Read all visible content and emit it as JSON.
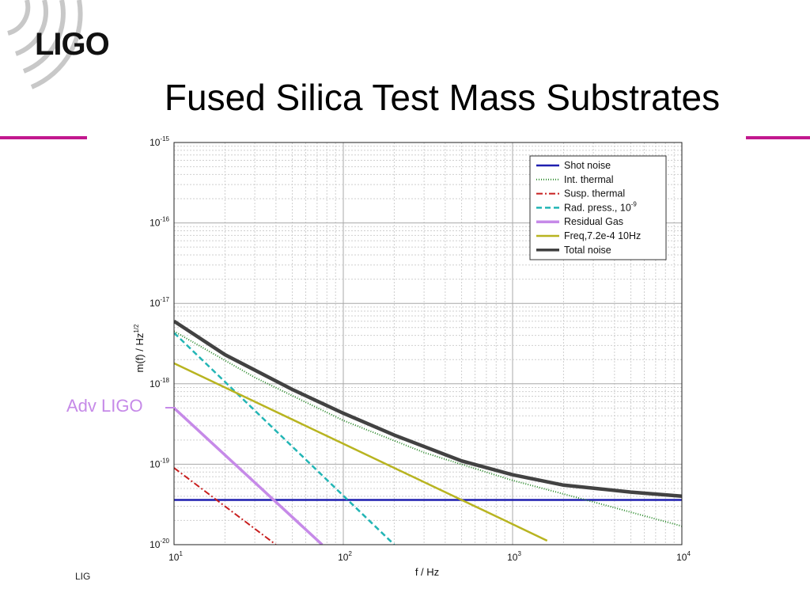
{
  "slide": {
    "logo_text": "LIGO",
    "title": "Fused Silica Test Mass Substrates",
    "footer": "LIG",
    "annotation": "Adv LIGO",
    "accent_color": "#c2188e",
    "annotation_color": "#c68ae8"
  },
  "chart_data": {
    "type": "line",
    "x_scale": "log",
    "y_scale": "log",
    "xlim": [
      10,
      10000
    ],
    "ylim": [
      1e-20,
      1e-15
    ],
    "xlabel": "f / Hz",
    "ylabel": "m(f) / Hz^1/2",
    "ylabel_base": "m(f) / Hz",
    "ylabel_exp": "1/2",
    "grid": true,
    "legend_position": "top-right",
    "x_ticks": [
      {
        "base": "10",
        "exp": "1",
        "value": 10
      },
      {
        "base": "10",
        "exp": "2",
        "value": 100
      },
      {
        "base": "10",
        "exp": "3",
        "value": 1000
      },
      {
        "base": "10",
        "exp": "4",
        "value": 10000
      }
    ],
    "y_ticks": [
      {
        "base": "10",
        "exp": "-15",
        "value": 1e-15
      },
      {
        "base": "10",
        "exp": "-16",
        "value": 1e-16
      },
      {
        "base": "10",
        "exp": "-17",
        "value": 1e-17
      },
      {
        "base": "10",
        "exp": "-18",
        "value": 1e-18
      },
      {
        "base": "10",
        "exp": "-19",
        "value": 1e-19
      },
      {
        "base": "10",
        "exp": "-20",
        "value": 1e-20
      }
    ],
    "series": [
      {
        "name": "Shot noise",
        "legend_sup": "",
        "color": "#1f1fb0",
        "dash": "",
        "width": 2.5,
        "x": [
          10,
          10000
        ],
        "y": [
          3.6e-20,
          3.6e-20
        ]
      },
      {
        "name": "Int. thermal",
        "legend_sup": "",
        "color": "#2a8a2a",
        "dash": "1,2",
        "width": 2,
        "x": [
          10,
          30,
          100,
          300,
          1000,
          3000,
          10000
        ],
        "y": [
          4.5e-18,
          1.2e-18,
          3.5e-19,
          1.4e-19,
          6.3e-20,
          3.4e-20,
          1.7e-20
        ]
      },
      {
        "name": "Susp. thermal",
        "legend_sup": "",
        "color": "#c81e1e",
        "dash": "8,3,2,3",
        "width": 2,
        "x": [
          10,
          40
        ],
        "y": [
          9e-20,
          1e-20
        ]
      },
      {
        "name": "Rad. press., 10",
        "legend_sup": "-9",
        "color": "#22b5b5",
        "dash": "7,4",
        "width": 2.5,
        "x": [
          10,
          200
        ],
        "y": [
          4.3e-18,
          1e-20
        ]
      },
      {
        "name": "Residual Gas",
        "legend_sup": "",
        "color": "#c68ae8",
        "dash": "",
        "width": 3.5,
        "x": [
          10,
          75
        ],
        "y": [
          5e-19,
          1e-20
        ]
      },
      {
        "name": "Freq,7.2e-4 10Hz",
        "legend_sup": "",
        "color": "#b8b420",
        "dash": "",
        "width": 2.5,
        "x": [
          10,
          100,
          1000,
          1600
        ],
        "y": [
          1.8e-18,
          1.8e-19,
          1.8e-20,
          1.12e-20
        ]
      },
      {
        "name": "Total noise",
        "legend_sup": "",
        "color": "#424242",
        "dash": "",
        "width": 4.5,
        "x": [
          10,
          20,
          50,
          100,
          200,
          500,
          1000,
          2000,
          5000,
          10000
        ],
        "y": [
          6e-18,
          2.3e-18,
          8.5e-19,
          4.3e-19,
          2.3e-19,
          1.1e-19,
          7.4e-20,
          5.5e-20,
          4.5e-20,
          4e-20
        ]
      }
    ]
  }
}
